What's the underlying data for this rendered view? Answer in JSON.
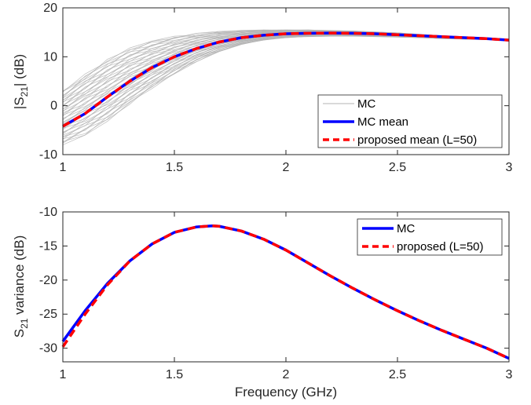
{
  "colors": {
    "mc_samples": "#b3b3b3",
    "mc_mean": "#0000ff",
    "proposed": "#ff0000",
    "axes": "#262626"
  },
  "chart_data": [
    {
      "type": "line",
      "xlabel": "",
      "ylabel_main": "|S",
      "ylabel_sub": "21",
      "ylabel_tail": "| (dB)",
      "xlim": [
        1,
        3
      ],
      "ylim": [
        -10,
        20
      ],
      "xticks": [
        "1",
        "1.5",
        "2",
        "2.5",
        "3"
      ],
      "yticks": [
        "-10",
        "0",
        "10",
        "20"
      ],
      "grid": false,
      "legend_position": "bottom-right",
      "x": [
        1.0,
        1.1,
        1.2,
        1.3,
        1.4,
        1.5,
        1.6,
        1.7,
        1.8,
        1.9,
        2.0,
        2.1,
        2.2,
        2.3,
        2.4,
        2.5,
        2.6,
        2.7,
        2.8,
        2.9,
        3.0
      ],
      "series": [
        {
          "name": "MC",
          "style": "thin-gray-envelope",
          "upper": [
            3.0,
            6.5,
            9.5,
            11.8,
            13.2,
            14.2,
            14.8,
            15.2,
            15.4,
            15.5,
            15.5,
            15.5,
            15.4,
            15.3,
            15.1,
            14.9,
            14.6,
            14.3,
            14.0,
            13.7,
            13.4
          ],
          "lower": [
            -8.0,
            -6.0,
            -3.2,
            0.3,
            3.5,
            6.5,
            9.0,
            11.0,
            12.5,
            13.4,
            13.9,
            14.1,
            14.2,
            14.2,
            14.1,
            14.0,
            13.9,
            13.7,
            13.6,
            13.5,
            13.3
          ]
        },
        {
          "name": "MC mean",
          "style": "solid",
          "values": [
            -4.2,
            -1.6,
            1.8,
            5.0,
            7.8,
            10.0,
            11.7,
            13.0,
            13.9,
            14.4,
            14.7,
            14.8,
            14.85,
            14.8,
            14.7,
            14.5,
            14.3,
            14.1,
            13.9,
            13.7,
            13.4
          ]
        },
        {
          "name": "proposed mean (L=50)",
          "style": "dashed",
          "values": [
            -4.2,
            -1.6,
            1.8,
            5.0,
            7.8,
            10.0,
            11.7,
            13.0,
            13.9,
            14.4,
            14.7,
            14.8,
            14.85,
            14.8,
            14.7,
            14.5,
            14.3,
            14.1,
            13.9,
            13.7,
            13.4
          ]
        }
      ]
    },
    {
      "type": "line",
      "xlabel": "Frequency (GHz)",
      "ylabel_main": "S",
      "ylabel_sub": "21",
      "ylabel_tail": " variance (dB)",
      "xlim": [
        1,
        3
      ],
      "ylim": [
        -32,
        -10
      ],
      "xticks": [
        "1",
        "1.5",
        "2",
        "2.5",
        "3"
      ],
      "yticks": [
        "-30",
        "-25",
        "-20",
        "-15",
        "-10"
      ],
      "grid": false,
      "legend_position": "top-right",
      "x": [
        1.0,
        1.1,
        1.2,
        1.3,
        1.4,
        1.5,
        1.6,
        1.67,
        1.7,
        1.8,
        1.9,
        2.0,
        2.1,
        2.2,
        2.3,
        2.4,
        2.5,
        2.6,
        2.7,
        2.8,
        2.9,
        3.0
      ],
      "series": [
        {
          "name": "MC",
          "style": "solid",
          "values": [
            -29.0,
            -24.5,
            -20.5,
            -17.2,
            -14.7,
            -13.0,
            -12.2,
            -12.05,
            -12.1,
            -12.8,
            -14.0,
            -15.6,
            -17.5,
            -19.4,
            -21.2,
            -22.9,
            -24.5,
            -26.0,
            -27.4,
            -28.7,
            -30.0,
            -31.5
          ]
        },
        {
          "name": "proposed (L=50)",
          "style": "dashed",
          "values": [
            -29.8,
            -25.0,
            -20.7,
            -17.2,
            -14.7,
            -13.0,
            -12.2,
            -12.05,
            -12.1,
            -12.8,
            -14.0,
            -15.6,
            -17.5,
            -19.4,
            -21.2,
            -22.9,
            -24.5,
            -26.0,
            -27.4,
            -28.7,
            -30.0,
            -31.5
          ]
        }
      ]
    }
  ]
}
